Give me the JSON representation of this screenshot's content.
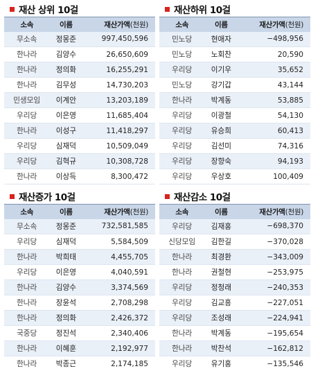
{
  "colors": {
    "bullet": "#d9231c",
    "header_bg": "#c8d6e8",
    "row_alt": "#eaf0f8"
  },
  "header": {
    "party": "소속",
    "name": "이름",
    "value": "재산가액",
    "unit": "(천원)"
  },
  "panels": [
    {
      "title": "재산 상위 10걸",
      "rows": [
        {
          "party": "무소속",
          "name": "정몽준",
          "value": "997,450,596"
        },
        {
          "party": "한나라",
          "name": "김양수",
          "value": "26,650,609"
        },
        {
          "party": "한나라",
          "name": "정의화",
          "value": "16,255,291"
        },
        {
          "party": "한나라",
          "name": "김무성",
          "value": "14,730,203"
        },
        {
          "party": "민생모임",
          "name": "이계안",
          "value": "13,203,189"
        },
        {
          "party": "우리당",
          "name": "이은영",
          "value": "11,685,404"
        },
        {
          "party": "한나라",
          "name": "이성구",
          "value": "11,418,297"
        },
        {
          "party": "우리당",
          "name": "심재덕",
          "value": "10,509,049"
        },
        {
          "party": "우리당",
          "name": "김혁규",
          "value": "10,308,728"
        },
        {
          "party": "한나라",
          "name": "이상득",
          "value": "8,300,472"
        }
      ]
    },
    {
      "title": "재산하위 10걸",
      "rows": [
        {
          "party": "민노당",
          "name": "현애자",
          "value": "−498,956"
        },
        {
          "party": "민노당",
          "name": "노회찬",
          "value": "20,590"
        },
        {
          "party": "우리당",
          "name": "이기우",
          "value": "35,652"
        },
        {
          "party": "민노당",
          "name": "강기갑",
          "value": "43,144"
        },
        {
          "party": "한나라",
          "name": "박계동",
          "value": "53,885"
        },
        {
          "party": "우리당",
          "name": "이광철",
          "value": "54,130"
        },
        {
          "party": "우리당",
          "name": "유승희",
          "value": "60,413"
        },
        {
          "party": "우리당",
          "name": "김선미",
          "value": "74,316"
        },
        {
          "party": "우리당",
          "name": "장향숙",
          "value": "94,193"
        },
        {
          "party": "우리당",
          "name": "우상호",
          "value": "100,409"
        }
      ]
    },
    {
      "title": "재산증가 10걸",
      "rows": [
        {
          "party": "무소속",
          "name": "정몽준",
          "value": "732,581,585"
        },
        {
          "party": "우리당",
          "name": "심재덕",
          "value": "5,584,509"
        },
        {
          "party": "한나라",
          "name": "박희태",
          "value": "4,455,705"
        },
        {
          "party": "우리당",
          "name": "이은영",
          "value": "4,040,591"
        },
        {
          "party": "한나라",
          "name": "김양수",
          "value": "3,374,569"
        },
        {
          "party": "한나라",
          "name": "장윤석",
          "value": "2,708,298"
        },
        {
          "party": "한나라",
          "name": "정의화",
          "value": "2,426,372"
        },
        {
          "party": "국중당",
          "name": "정진석",
          "value": "2,340,406"
        },
        {
          "party": "한나라",
          "name": "이혜훈",
          "value": "2,192,977"
        },
        {
          "party": "한나라",
          "name": "박종근",
          "value": "2,174,185"
        }
      ]
    },
    {
      "title": "재산감소 10걸",
      "rows": [
        {
          "party": "우리당",
          "name": "김재홍",
          "value": "−698,370"
        },
        {
          "party": "신당모임",
          "name": "김한길",
          "value": "−370,028"
        },
        {
          "party": "한나라",
          "name": "최경환",
          "value": "−343,009"
        },
        {
          "party": "한나라",
          "name": "권철현",
          "value": "−253,975"
        },
        {
          "party": "우리당",
          "name": "정청래",
          "value": "−240,353"
        },
        {
          "party": "우리당",
          "name": "김교흥",
          "value": "−227,051"
        },
        {
          "party": "우리당",
          "name": "조성래",
          "value": "−224,941"
        },
        {
          "party": "한나라",
          "name": "박계동",
          "value": "−195,654"
        },
        {
          "party": "한나라",
          "name": "박찬석",
          "value": "−162,812"
        },
        {
          "party": "우리당",
          "name": "유기홍",
          "value": "−135,546"
        }
      ]
    }
  ]
}
